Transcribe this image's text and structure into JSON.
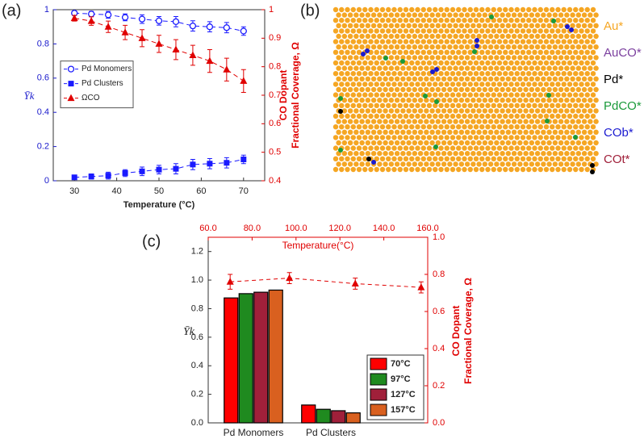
{
  "chart_data": [
    {
      "type": "line",
      "panel": "(a)",
      "xlabel": "Temperature (°C)",
      "ylabel": "Ȳk",
      "y2label": [
        "CO Dopant",
        "Fractional Coverage, Ω"
      ],
      "x": [
        30,
        34,
        38,
        42,
        46,
        50,
        54,
        58,
        62,
        66,
        70
      ],
      "xlim": [
        25,
        75
      ],
      "xticks": [
        30,
        40,
        50,
        60,
        70
      ],
      "ylim": [
        0,
        1
      ],
      "yticks": [
        0,
        0.2,
        0.4,
        0.6,
        0.8,
        1
      ],
      "ycolor": "#1a1acc",
      "y2lim": [
        0.4,
        1
      ],
      "y2ticks": [
        0.4,
        0.5,
        0.6,
        0.7,
        0.8,
        0.9,
        1
      ],
      "y2color": "#e00000",
      "legend": "center left",
      "series": [
        {
          "name": "Pd Monomers",
          "color": "#1a1aff",
          "marker": "circle-open",
          "dashed": true,
          "values": [
            0.98,
            0.975,
            0.97,
            0.955,
            0.945,
            0.935,
            0.93,
            0.905,
            0.9,
            0.895,
            0.875
          ],
          "errors": [
            0.01,
            0.015,
            0.02,
            0.02,
            0.025,
            0.025,
            0.03,
            0.03,
            0.03,
            0.03,
            0.025
          ]
        },
        {
          "name": "Pd Clusters",
          "color": "#1a1aff",
          "marker": "square",
          "dashed": true,
          "values": [
            0.02,
            0.025,
            0.03,
            0.045,
            0.055,
            0.065,
            0.07,
            0.095,
            0.1,
            0.105,
            0.125
          ],
          "errors": [
            0.01,
            0.015,
            0.02,
            0.02,
            0.025,
            0.025,
            0.03,
            0.03,
            0.03,
            0.03,
            0.025
          ]
        },
        {
          "name": "ΩCO",
          "color": "#e00000",
          "marker": "triangle",
          "dashed": true,
          "axis": "y2",
          "values": [
            0.97,
            0.96,
            0.94,
            0.92,
            0.9,
            0.88,
            0.86,
            0.84,
            0.82,
            0.79,
            0.75
          ],
          "errors": [
            0.01,
            0.015,
            0.02,
            0.025,
            0.03,
            0.03,
            0.035,
            0.035,
            0.04,
            0.04,
            0.04
          ]
        }
      ]
    },
    {
      "type": "bar",
      "panel": "(c)",
      "ylabel": "Ȳk",
      "y2label": [
        "CO Dopant",
        "Fractional Coverage, Ω"
      ],
      "x2label": "Temperature(°C)",
      "categories": [
        "Pd Monomers",
        "Pd Clusters"
      ],
      "ylim": [
        0,
        1.3
      ],
      "yticks": [
        {
          "value": 0,
          "label": "0.0"
        },
        0.2,
        0.4,
        0.6,
        0.8,
        {
          "value": 1,
          "label": "1.0"
        },
        1.2
      ],
      "y2lim": [
        0,
        1
      ],
      "y2ticks": [
        {
          "value": 0,
          "label": "0.0"
        },
        0.2,
        0.4,
        0.6,
        0.8,
        {
          "value": 1,
          "label": "1.0"
        }
      ],
      "y2color": "#e00000",
      "x2lim": [
        60,
        160
      ],
      "x2ticks": [
        {
          "value": 60,
          "label": "60.0"
        },
        {
          "value": 80,
          "label": "80.0"
        },
        {
          "value": 100,
          "label": "100.0"
        },
        {
          "value": 120,
          "label": "120.0"
        },
        {
          "value": 140,
          "label": "140.0"
        },
        {
          "value": 160,
          "label": "160.0"
        }
      ],
      "series": [
        {
          "name": "70°C",
          "color": "#ff0000",
          "values": [
            0.875,
            0.125
          ]
        },
        {
          "name": "97°C",
          "color": "#1f8a1f",
          "values": [
            0.905,
            0.095
          ]
        },
        {
          "name": "127°C",
          "color": "#a0203a",
          "values": [
            0.915,
            0.085
          ]
        },
        {
          "name": "157°C",
          "color": "#d9601f",
          "values": [
            0.93,
            0.07
          ]
        }
      ],
      "overlay": {
        "type": "line",
        "color": "#e00000",
        "marker": "triangle",
        "dashed": true,
        "axis": "y2",
        "x": [
          70,
          97,
          127,
          157
        ],
        "values": [
          0.76,
          0.78,
          0.75,
          0.73
        ],
        "errors": [
          0.04,
          0.03,
          0.03,
          0.03
        ]
      }
    }
  ],
  "lattice": {
    "panel": "(b)",
    "background": "#f5a623",
    "legend": [
      {
        "name": "Au*",
        "color": "#f5a623"
      },
      {
        "name": "AuCO*",
        "color": "#7b3f9e"
      },
      {
        "name": "Pd*",
        "color": "#000000"
      },
      {
        "name": "PdCO*",
        "color": "#1a9a3a"
      },
      {
        "name": "COb*",
        "color": "#1a1ad0"
      },
      {
        "name": "COt*",
        "color": "#a0203a"
      }
    ]
  }
}
